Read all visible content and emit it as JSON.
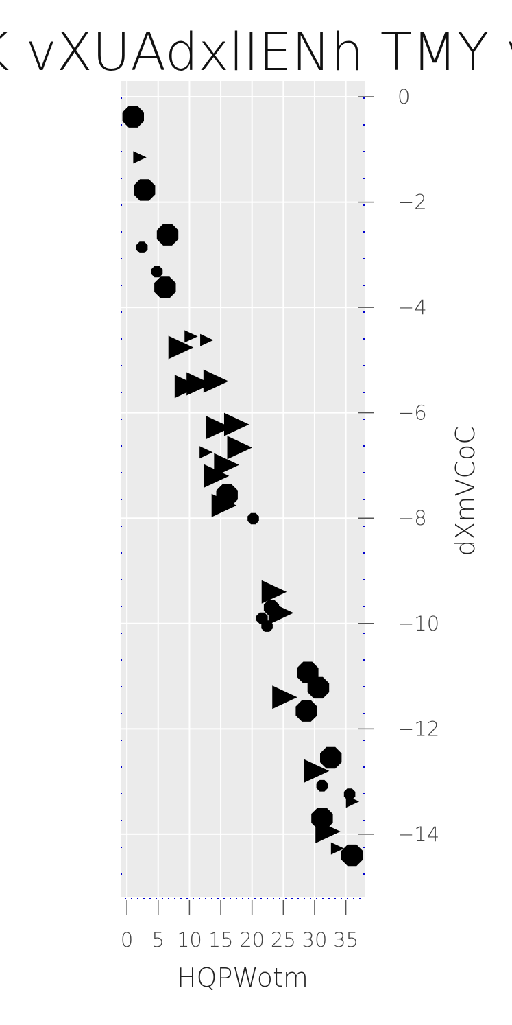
{
  "chart_data": {
    "type": "scatter",
    "title": "K vXUAdxlIENh TMY v",
    "xlabel": "HQPWotm",
    "ylabel": "dXmVCoC",
    "xlim": [
      -1,
      38
    ],
    "ylim": [
      -15.2,
      0.3
    ],
    "xticks": [
      0,
      5,
      10,
      15,
      20,
      25,
      30,
      35
    ],
    "yticks": [
      0,
      -2,
      -4,
      -6,
      -8,
      -10,
      -12,
      -14
    ],
    "ytick_labels": [
      "0",
      "−2",
      "−4",
      "−6",
      "−8",
      "−10",
      "−12",
      "−14"
    ],
    "y_axis_position": "right",
    "grid": true,
    "legend": "none",
    "background_color": "#ebebeb",
    "grid_color": "#ffffff",
    "marker_color": "#000000",
    "border_dots_color": "#0000cc",
    "points": [
      {
        "x": 1.0,
        "y": -0.38,
        "marker": "octagon",
        "size": "large"
      },
      {
        "x": 2.0,
        "y": -1.15,
        "marker": "triangle-right",
        "size": "small"
      },
      {
        "x": 2.8,
        "y": -1.77,
        "marker": "octagon",
        "size": "large"
      },
      {
        "x": 6.5,
        "y": -2.62,
        "marker": "octagon",
        "size": "large"
      },
      {
        "x": 2.4,
        "y": -2.86,
        "marker": "octagon",
        "size": "small"
      },
      {
        "x": 4.8,
        "y": -3.32,
        "marker": "octagon",
        "size": "small"
      },
      {
        "x": 6.1,
        "y": -3.62,
        "marker": "octagon",
        "size": "large"
      },
      {
        "x": 10.2,
        "y": -4.55,
        "marker": "triangle-right",
        "size": "small"
      },
      {
        "x": 12.7,
        "y": -4.62,
        "marker": "triangle-right",
        "size": "small"
      },
      {
        "x": 8.5,
        "y": -4.76,
        "marker": "triangle-right",
        "size": "large"
      },
      {
        "x": 9.5,
        "y": -5.5,
        "marker": "triangle-right",
        "size": "large"
      },
      {
        "x": 11.4,
        "y": -5.45,
        "marker": "triangle-right",
        "size": "large"
      },
      {
        "x": 14.1,
        "y": -5.4,
        "marker": "triangle-right",
        "size": "large"
      },
      {
        "x": 14.5,
        "y": -6.28,
        "marker": "triangle-right",
        "size": "large"
      },
      {
        "x": 17.4,
        "y": -6.22,
        "marker": "triangle-right",
        "size": "large"
      },
      {
        "x": 17.9,
        "y": -6.66,
        "marker": "triangle-right",
        "size": "large"
      },
      {
        "x": 12.6,
        "y": -6.75,
        "marker": "triangle-right",
        "size": "small"
      },
      {
        "x": 15.8,
        "y": -6.99,
        "marker": "triangle-right",
        "size": "large"
      },
      {
        "x": 14.2,
        "y": -7.2,
        "marker": "triangle-right",
        "size": "large"
      },
      {
        "x": 16.0,
        "y": -7.56,
        "marker": "octagon",
        "size": "large"
      },
      {
        "x": 15.4,
        "y": -7.76,
        "marker": "triangle-right",
        "size": "large"
      },
      {
        "x": 20.2,
        "y": -8.01,
        "marker": "octagon",
        "size": "small"
      },
      {
        "x": 23.4,
        "y": -9.4,
        "marker": "triangle-right",
        "size": "large"
      },
      {
        "x": 23.1,
        "y": -9.7,
        "marker": "octagon",
        "size": "medium"
      },
      {
        "x": 24.5,
        "y": -9.8,
        "marker": "triangle-right",
        "size": "large"
      },
      {
        "x": 21.6,
        "y": -9.9,
        "marker": "octagon",
        "size": "small"
      },
      {
        "x": 22.4,
        "y": -10.05,
        "marker": "octagon",
        "size": "small"
      },
      {
        "x": 28.9,
        "y": -10.93,
        "marker": "octagon",
        "size": "large"
      },
      {
        "x": 30.6,
        "y": -11.22,
        "marker": "octagon",
        "size": "large"
      },
      {
        "x": 25.1,
        "y": -11.4,
        "marker": "triangle-right",
        "size": "large"
      },
      {
        "x": 28.7,
        "y": -11.66,
        "marker": "octagon",
        "size": "large"
      },
      {
        "x": 32.6,
        "y": -12.55,
        "marker": "octagon",
        "size": "large"
      },
      {
        "x": 30.2,
        "y": -12.8,
        "marker": "triangle-right",
        "size": "large"
      },
      {
        "x": 31.2,
        "y": -13.08,
        "marker": "octagon",
        "size": "small"
      },
      {
        "x": 35.6,
        "y": -13.24,
        "marker": "octagon",
        "size": "small"
      },
      {
        "x": 36.0,
        "y": -13.38,
        "marker": "triangle-right",
        "size": "small"
      },
      {
        "x": 31.2,
        "y": -13.7,
        "marker": "octagon",
        "size": "large"
      },
      {
        "x": 32.0,
        "y": -13.95,
        "marker": "triangle-right",
        "size": "large"
      },
      {
        "x": 33.6,
        "y": -14.27,
        "marker": "triangle-right",
        "size": "small"
      },
      {
        "x": 36.0,
        "y": -14.4,
        "marker": "octagon",
        "size": "large"
      }
    ]
  }
}
